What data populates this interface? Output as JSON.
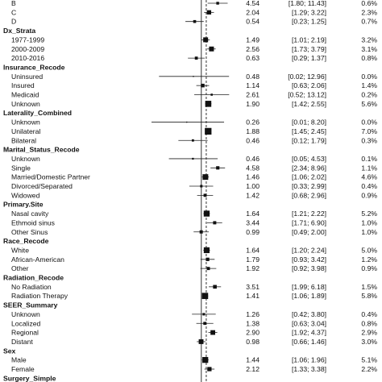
{
  "chart_data": {
    "type": "forest",
    "reference_line": 1,
    "null_reference_line": 1,
    "rows": [
      {
        "kind": "row",
        "label": "B",
        "hr": "4.54",
        "ci": "[1.80; 11.43]",
        "w": "0.6%",
        "est": 4.54,
        "lo": 1.8,
        "hi": 11.43,
        "wt": 0.6
      },
      {
        "kind": "row",
        "label": "C",
        "hr": "2.04",
        "ci": "[1.29; 3.22]",
        "w": "2.3%",
        "est": 2.04,
        "lo": 1.29,
        "hi": 3.22,
        "wt": 2.3
      },
      {
        "kind": "row",
        "label": "D",
        "hr": "0.54",
        "ci": "[0.23; 1.25]",
        "w": "0.7%",
        "est": 0.54,
        "lo": 0.23,
        "hi": 1.25,
        "wt": 0.7
      },
      {
        "kind": "header",
        "label": "Dx_Strata"
      },
      {
        "kind": "row",
        "label": "1977-1999",
        "hr": "1.49",
        "ci": "[1.01; 2.19]",
        "w": "3.2%",
        "est": 1.49,
        "lo": 1.01,
        "hi": 2.19,
        "wt": 3.2
      },
      {
        "kind": "row",
        "label": "2000-2009",
        "hr": "2.56",
        "ci": "[1.73; 3.79]",
        "w": "3.1%",
        "est": 2.56,
        "lo": 1.73,
        "hi": 3.79,
        "wt": 3.1
      },
      {
        "kind": "row",
        "label": "2010-2016",
        "hr": "0.63",
        "ci": "[0.29; 1.37]",
        "w": "0.8%",
        "est": 0.63,
        "lo": 0.29,
        "hi": 1.37,
        "wt": 0.8
      },
      {
        "kind": "header",
        "label": "Insurance_Recode"
      },
      {
        "kind": "row",
        "label": "Uninsured",
        "hr": "0.48",
        "ci": "[0.02; 12.96]",
        "w": "0.0%",
        "est": 0.48,
        "lo": 0.02,
        "hi": 12.96,
        "wt": 0.0
      },
      {
        "kind": "row",
        "label": "Insured",
        "hr": "1.14",
        "ci": "[0.63; 2.06]",
        "w": "1.4%",
        "est": 1.14,
        "lo": 0.63,
        "hi": 2.06,
        "wt": 1.4
      },
      {
        "kind": "row",
        "label": "Medicaid",
        "hr": "2.61",
        "ci": "[0.52; 13.12]",
        "w": "0.2%",
        "est": 2.61,
        "lo": 0.52,
        "hi": 13.12,
        "wt": 0.2
      },
      {
        "kind": "row",
        "label": "Unknown",
        "hr": "1.90",
        "ci": "[1.42; 2.55]",
        "w": "5.6%",
        "est": 1.9,
        "lo": 1.42,
        "hi": 2.55,
        "wt": 5.6
      },
      {
        "kind": "header",
        "label": "Laterality_Combined"
      },
      {
        "kind": "row",
        "label": "Unknown",
        "hr": "0.26",
        "ci": "[0.01; 8.20]",
        "w": "0.0%",
        "est": 0.26,
        "lo": 0.01,
        "hi": 8.2,
        "wt": 0.0
      },
      {
        "kind": "row",
        "label": "Unilateral",
        "hr": "1.88",
        "ci": "[1.45; 2.45]",
        "w": "7.0%",
        "est": 1.88,
        "lo": 1.45,
        "hi": 2.45,
        "wt": 7.0
      },
      {
        "kind": "row",
        "label": "Bilateral",
        "hr": "0.46",
        "ci": "[0.12; 1.79]",
        "w": "0.3%",
        "est": 0.46,
        "lo": 0.12,
        "hi": 1.79,
        "wt": 0.3
      },
      {
        "kind": "header",
        "label": "Marital_Status_Recode"
      },
      {
        "kind": "row",
        "label": "Unknown",
        "hr": "0.46",
        "ci": "[0.05; 4.53]",
        "w": "0.1%",
        "est": 0.46,
        "lo": 0.05,
        "hi": 4.53,
        "wt": 0.1
      },
      {
        "kind": "row",
        "label": "Single",
        "hr": "4.58",
        "ci": "[2.34; 8.96]",
        "w": "1.1%",
        "est": 4.58,
        "lo": 2.34,
        "hi": 8.96,
        "wt": 1.1
      },
      {
        "kind": "row",
        "label": "Married/Domestic Partner",
        "hr": "1.46",
        "ci": "[1.06; 2.02]",
        "w": "4.6%",
        "est": 1.46,
        "lo": 1.06,
        "hi": 2.02,
        "wt": 4.6
      },
      {
        "kind": "row",
        "label": "Divorced/Separated",
        "hr": "1.00",
        "ci": "[0.33; 2.99]",
        "w": "0.4%",
        "est": 1.0,
        "lo": 0.33,
        "hi": 2.99,
        "wt": 0.4
      },
      {
        "kind": "row",
        "label": "Widowed",
        "hr": "1.42",
        "ci": "[0.68; 2.96]",
        "w": "0.9%",
        "est": 1.42,
        "lo": 0.68,
        "hi": 2.96,
        "wt": 0.9
      },
      {
        "kind": "header",
        "label": "Primary.Site"
      },
      {
        "kind": "row",
        "label": "Nasal cavity",
        "hr": "1.64",
        "ci": "[1.21; 2.22]",
        "w": "5.2%",
        "est": 1.64,
        "lo": 1.21,
        "hi": 2.22,
        "wt": 5.2
      },
      {
        "kind": "row",
        "label": "Ethmoid sinus",
        "hr": "3.44",
        "ci": "[1.71; 6.90]",
        "w": "1.0%",
        "est": 3.44,
        "lo": 1.71,
        "hi": 6.9,
        "wt": 1.0
      },
      {
        "kind": "row",
        "label": "Other Sinus",
        "hr": "0.99",
        "ci": "[0.49; 2.00]",
        "w": "1.0%",
        "est": 0.99,
        "lo": 0.49,
        "hi": 2.0,
        "wt": 1.0
      },
      {
        "kind": "header",
        "label": "Race_Recode"
      },
      {
        "kind": "row",
        "label": "White",
        "hr": "1.64",
        "ci": "[1.20; 2.24]",
        "w": "5.0%",
        "est": 1.64,
        "lo": 1.2,
        "hi": 2.24,
        "wt": 5.0
      },
      {
        "kind": "row",
        "label": "African-American",
        "hr": "1.79",
        "ci": "[0.93; 3.42]",
        "w": "1.2%",
        "est": 1.79,
        "lo": 0.93,
        "hi": 3.42,
        "wt": 1.2
      },
      {
        "kind": "row",
        "label": "Other",
        "hr": "1.92",
        "ci": "[0.92; 3.98]",
        "w": "0.9%",
        "est": 1.92,
        "lo": 0.92,
        "hi": 3.98,
        "wt": 0.9
      },
      {
        "kind": "header",
        "label": "Radiation_Recode"
      },
      {
        "kind": "row",
        "label": "No Radiation",
        "hr": "3.51",
        "ci": "[1.99; 6.18]",
        "w": "1.5%",
        "est": 3.51,
        "lo": 1.99,
        "hi": 6.18,
        "wt": 1.5
      },
      {
        "kind": "row",
        "label": "Radiation Therapy",
        "hr": "1.41",
        "ci": "[1.06; 1.89]",
        "w": "5.8%",
        "est": 1.41,
        "lo": 1.06,
        "hi": 1.89,
        "wt": 5.8
      },
      {
        "kind": "header",
        "label": "SEER_Summary"
      },
      {
        "kind": "row",
        "label": "Unknown",
        "hr": "1.26",
        "ci": "[0.42; 3.80]",
        "w": "0.4%",
        "est": 1.26,
        "lo": 0.42,
        "hi": 3.8,
        "wt": 0.4
      },
      {
        "kind": "row",
        "label": "Localized",
        "hr": "1.38",
        "ci": "[0.63; 3.04]",
        "w": "0.8%",
        "est": 1.38,
        "lo": 0.63,
        "hi": 3.04,
        "wt": 0.8
      },
      {
        "kind": "row",
        "label": "Regional",
        "hr": "2.90",
        "ci": "[1.92; 4.37]",
        "w": "2.9%",
        "est": 2.9,
        "lo": 1.92,
        "hi": 4.37,
        "wt": 2.9
      },
      {
        "kind": "row",
        "label": "Distant",
        "hr": "0.98",
        "ci": "[0.66; 1.46]",
        "w": "3.0%",
        "est": 0.98,
        "lo": 0.66,
        "hi": 1.46,
        "wt": 3.0
      },
      {
        "kind": "header",
        "label": "Sex"
      },
      {
        "kind": "row",
        "label": "Male",
        "hr": "1.44",
        "ci": "[1.06; 1.96]",
        "w": "5.1%",
        "est": 1.44,
        "lo": 1.06,
        "hi": 1.96,
        "wt": 5.1
      },
      {
        "kind": "row",
        "label": "Female",
        "hr": "2.12",
        "ci": "[1.33; 3.38]",
        "w": "2.2%",
        "est": 2.12,
        "lo": 1.33,
        "hi": 3.38,
        "wt": 2.2
      },
      {
        "kind": "header",
        "label": "Surgery_Simple"
      }
    ]
  }
}
